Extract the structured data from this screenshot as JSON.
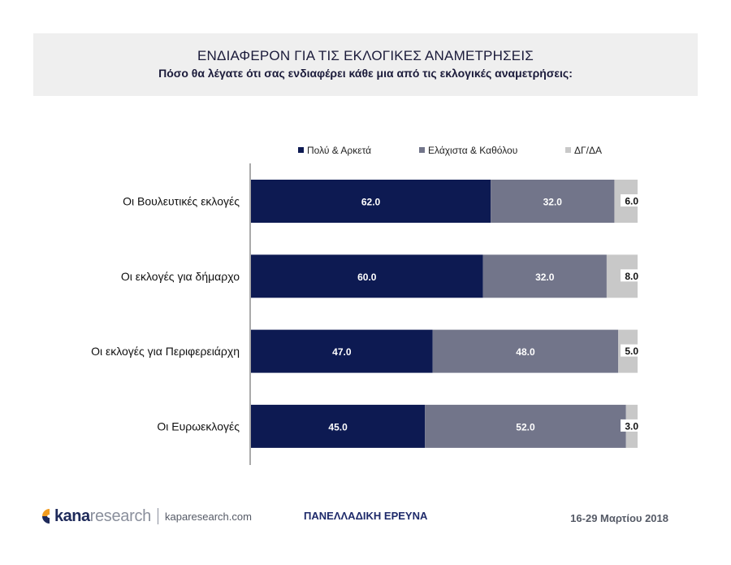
{
  "header": {
    "title": "ΕΝΔΙΑΦΕΡΟΝ ΓΙΑ ΤΙΣ ΕΚΛΟΓΙΚΕΣ ΑΝΑΜΕΤΡΗΣΕΙΣ",
    "subtitle": "Πόσο θα λέγατε ότι σας ενδιαφέρει κάθε μια από τις εκλογικές αναμετρήσεις:"
  },
  "chart_data": {
    "type": "bar",
    "orientation": "horizontal",
    "stacked": true,
    "categories": [
      "Οι Βουλευτικές εκλογές",
      "Οι εκλογές για δήμαρχο",
      "Οι εκλογές για Περιφερειάρχη",
      "Οι Ευρωεκλογές"
    ],
    "series": [
      {
        "name": "Πολύ & Αρκετά",
        "color": "#0d1a52",
        "values": [
          62.0,
          60.0,
          47.0,
          45.0
        ]
      },
      {
        "name": "Ελάχιστα & Καθόλου",
        "color": "#72758a",
        "values": [
          32.0,
          32.0,
          48.0,
          52.0
        ]
      },
      {
        "name": "ΔΓ/ΔΑ",
        "color": "#c8c8c8",
        "values": [
          6.0,
          8.0,
          5.0,
          3.0
        ]
      }
    ],
    "xlim": [
      0,
      100
    ],
    "legend": "top",
    "grid": false
  },
  "footer": {
    "logo_kana": "kana",
    "logo_research": "research",
    "url": "kaparesearch.com",
    "survey": "ΠΑΝΕΛΛΑΔΙΚΗ ΕΡΕΥΝΑ",
    "date": "16-29 Μαρτίου 2018"
  }
}
